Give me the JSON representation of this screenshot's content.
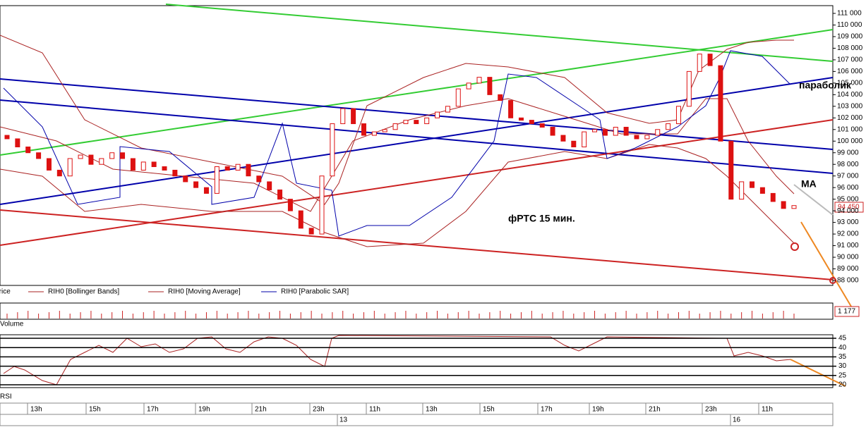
{
  "price_axis": {
    "ticks": [
      {
        "value": 111000,
        "label": "111 000"
      },
      {
        "value": 110000,
        "label": "110 000"
      },
      {
        "value": 109000,
        "label": "109 000"
      },
      {
        "value": 108000,
        "label": "108 000"
      },
      {
        "value": 107000,
        "label": "107 000"
      },
      {
        "value": 106000,
        "label": "106 000"
      },
      {
        "value": 105000,
        "label": "105 000"
      },
      {
        "value": 104000,
        "label": "104 000"
      },
      {
        "value": 103000,
        "label": "103 000"
      },
      {
        "value": 102000,
        "label": "102 000"
      },
      {
        "value": 101000,
        "label": "101 000"
      },
      {
        "value": 100000,
        "label": "100 000"
      },
      {
        "value": 99000,
        "label": "99 000"
      },
      {
        "value": 98000,
        "label": "98 000"
      },
      {
        "value": 97000,
        "label": "97 000"
      },
      {
        "value": 96000,
        "label": "96 000"
      },
      {
        "value": 95000,
        "label": "95 000"
      },
      {
        "value": 94000,
        "label": "94 000"
      },
      {
        "value": 93000,
        "label": "93 000"
      },
      {
        "value": 92000,
        "label": "92 000"
      },
      {
        "value": 91000,
        "label": "91 000"
      },
      {
        "value": 90000,
        "label": "90 000"
      },
      {
        "value": 89000,
        "label": "89 000"
      },
      {
        "value": 88000,
        "label": "88 000"
      }
    ]
  },
  "candles": {
    "open": [
      100500,
      100200,
      99500,
      99000,
      98500,
      97500,
      97000,
      98500,
      98800,
      98000,
      98500,
      99000,
      98500,
      97500,
      98200,
      97800,
      97500,
      97000,
      96500,
      96000,
      95500,
      97800,
      97500,
      98000,
      97000,
      96500,
      95800,
      95000,
      94000,
      92500,
      92000,
      97000,
      101500,
      102800,
      101500,
      100500,
      100800,
      101000,
      101500,
      101800,
      101500,
      102000,
      102500,
      103000,
      104500,
      105000,
      105500,
      104000,
      103500,
      102000,
      101800,
      101500,
      101200,
      100500,
      100000,
      99500,
      100800,
      101000,
      100500,
      101200,
      100500,
      100200,
      100500,
      101000,
      101500,
      103000,
      106000,
      107500,
      106500,
      100000,
      95000,
      96500,
      96000,
      95500,
      94800,
      94200
    ],
    "close": [
      100200,
      99500,
      99000,
      98500,
      97500,
      97000,
      98500,
      98800,
      98000,
      98500,
      99000,
      98500,
      97500,
      98200,
      97800,
      97500,
      97000,
      96500,
      96000,
      95500,
      97800,
      97500,
      98000,
      97000,
      96500,
      95800,
      95000,
      94000,
      92500,
      92000,
      97000,
      101500,
      102800,
      101500,
      100500,
      100800,
      101000,
      101500,
      101800,
      101500,
      102000,
      102500,
      103000,
      104500,
      105000,
      105500,
      104000,
      103500,
      102000,
      101800,
      101500,
      101200,
      100500,
      100000,
      99500,
      100800,
      101000,
      100500,
      101200,
      100500,
      100200,
      100500,
      101000,
      101500,
      103000,
      106000,
      107500,
      106500,
      100000,
      95000,
      96500,
      96000,
      95500,
      94800,
      94200,
      94450
    ]
  },
  "legend": [
    "Price",
    "RIH0 [Bollinger Bands]",
    "RIH0 [Moving Average]",
    "RIH0 [Parabolic SAR]"
  ],
  "volume": {
    "label": "Volume",
    "last": "1 177"
  },
  "rsi": {
    "label": "RSI",
    "ticks": [
      45,
      40,
      35,
      30,
      25,
      20
    ]
  },
  "time_labels": [
    "13h",
    "15h",
    "17h",
    "19h",
    "21h",
    "23h",
    "11h",
    "13h",
    "15h",
    "17h",
    "19h",
    "21h",
    "23h",
    "11h"
  ],
  "date_labels": [
    "13",
    "16"
  ],
  "annotations": {
    "parabolic": "параболик",
    "ma": "МА",
    "title": "фРТС  15 мин.",
    "last_price": "94 450"
  }
}
